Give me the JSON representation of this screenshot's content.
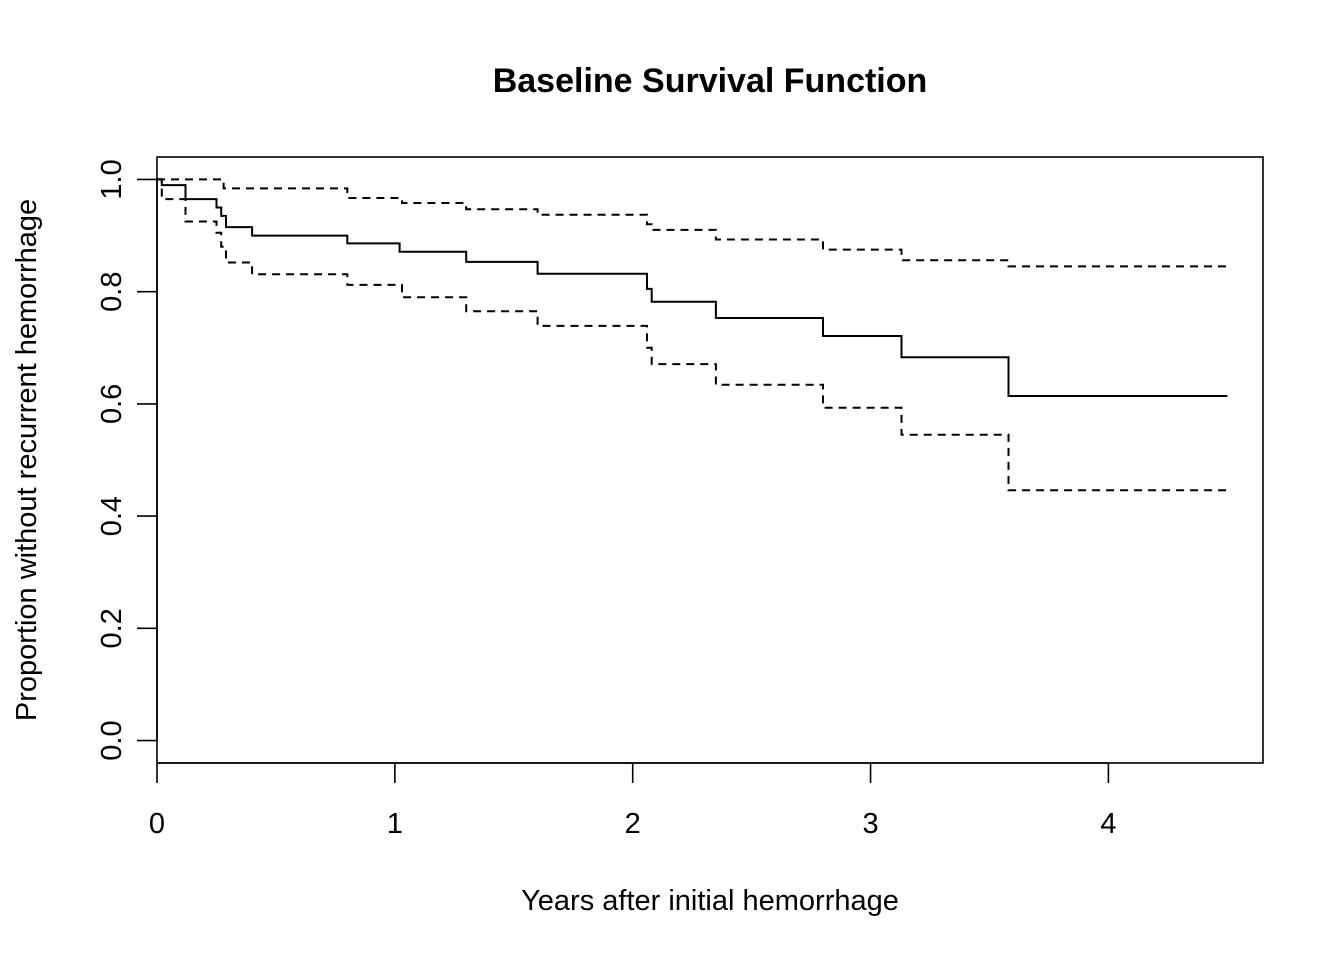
{
  "chart_data": {
    "type": "line",
    "title": "Baseline Survival Function",
    "xlabel": "Years after initial hemorrhage",
    "ylabel": "Proportion without recurrent hemorrhage",
    "xlim": [
      0,
      4.65
    ],
    "ylim": [
      -0.04,
      1.04
    ],
    "x_ticks": [
      0,
      1,
      2,
      3,
      4
    ],
    "x_tick_labels": [
      "0",
      "1",
      "2",
      "3",
      "4"
    ],
    "y_ticks": [
      0.0,
      0.2,
      0.4,
      0.6,
      0.8,
      1.0
    ],
    "y_tick_labels": [
      "0.0",
      "0.2",
      "0.4",
      "0.6",
      "0.8",
      "1.0"
    ],
    "grid": false,
    "legend": "none",
    "series": [
      {
        "role": "estimate",
        "line_style": "solid",
        "x": [
          0,
          0.02,
          0.12,
          0.25,
          0.27,
          0.29,
          0.4,
          0.8,
          1.02,
          1.3,
          1.6,
          2.06,
          2.08,
          2.35,
          2.8,
          3.13,
          3.58,
          4.5
        ],
        "y": [
          1.0,
          0.99,
          0.965,
          0.95,
          0.935,
          0.915,
          0.9,
          0.886,
          0.871,
          0.853,
          0.832,
          0.805,
          0.782,
          0.753,
          0.721,
          0.683,
          0.614,
          0.614
        ]
      },
      {
        "role": "upper-confidence-bound",
        "line_style": "dashed",
        "x": [
          0,
          0.28,
          0.8,
          1.03,
          1.3,
          1.6,
          2.06,
          2.08,
          2.35,
          2.8,
          3.13,
          3.58,
          4.5
        ],
        "y": [
          1.0,
          0.984,
          0.967,
          0.958,
          0.947,
          0.937,
          0.92,
          0.91,
          0.893,
          0.875,
          0.856,
          0.845,
          0.845
        ]
      },
      {
        "role": "lower-confidence-bound",
        "line_style": "dashed",
        "x": [
          0,
          0.02,
          0.12,
          0.25,
          0.27,
          0.29,
          0.4,
          0.8,
          1.03,
          1.3,
          1.6,
          2.06,
          2.08,
          2.35,
          2.8,
          3.13,
          3.58,
          4.5
        ],
        "y": [
          1.0,
          0.965,
          0.925,
          0.905,
          0.88,
          0.852,
          0.831,
          0.812,
          0.79,
          0.765,
          0.739,
          0.7,
          0.671,
          0.634,
          0.593,
          0.545,
          0.446,
          0.446
        ]
      }
    ]
  }
}
